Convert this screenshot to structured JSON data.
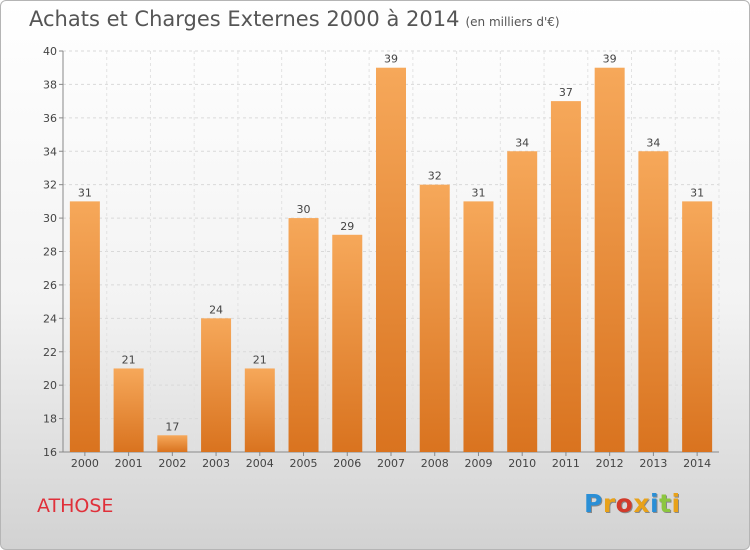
{
  "header": {
    "title": "Achats et Charges Externes 2000 à 2014",
    "unit": "(en milliers d'€)"
  },
  "footer": {
    "city": "ATHOSE",
    "logo": [
      "P",
      "r",
      "o",
      "x",
      "i",
      "t",
      "i"
    ]
  },
  "colors": {
    "bar_top": "#f6a85a",
    "bar_bottom": "#d9731f",
    "city": "#e0303a",
    "logo": [
      "#2a8fd6",
      "#e8a21a",
      "#d23a2a",
      "#e8a21a",
      "#2a8fd6",
      "#8cc63f",
      "#e8a21a"
    ]
  },
  "chart_data": {
    "type": "bar",
    "title": "Achats et Charges Externes 2000 à 2014",
    "xlabel": "",
    "ylabel": "",
    "categories": [
      "2000",
      "2001",
      "2002",
      "2003",
      "2004",
      "2005",
      "2006",
      "2007",
      "2008",
      "2009",
      "2010",
      "2011",
      "2012",
      "2013",
      "2014"
    ],
    "values": [
      31,
      21,
      17,
      24,
      21,
      30,
      29,
      39,
      32,
      31,
      34,
      37,
      39,
      34,
      31
    ],
    "ylim": [
      16,
      40
    ],
    "yticks": [
      16,
      18,
      20,
      22,
      24,
      26,
      28,
      30,
      32,
      34,
      36,
      38,
      40
    ],
    "grid": true
  }
}
